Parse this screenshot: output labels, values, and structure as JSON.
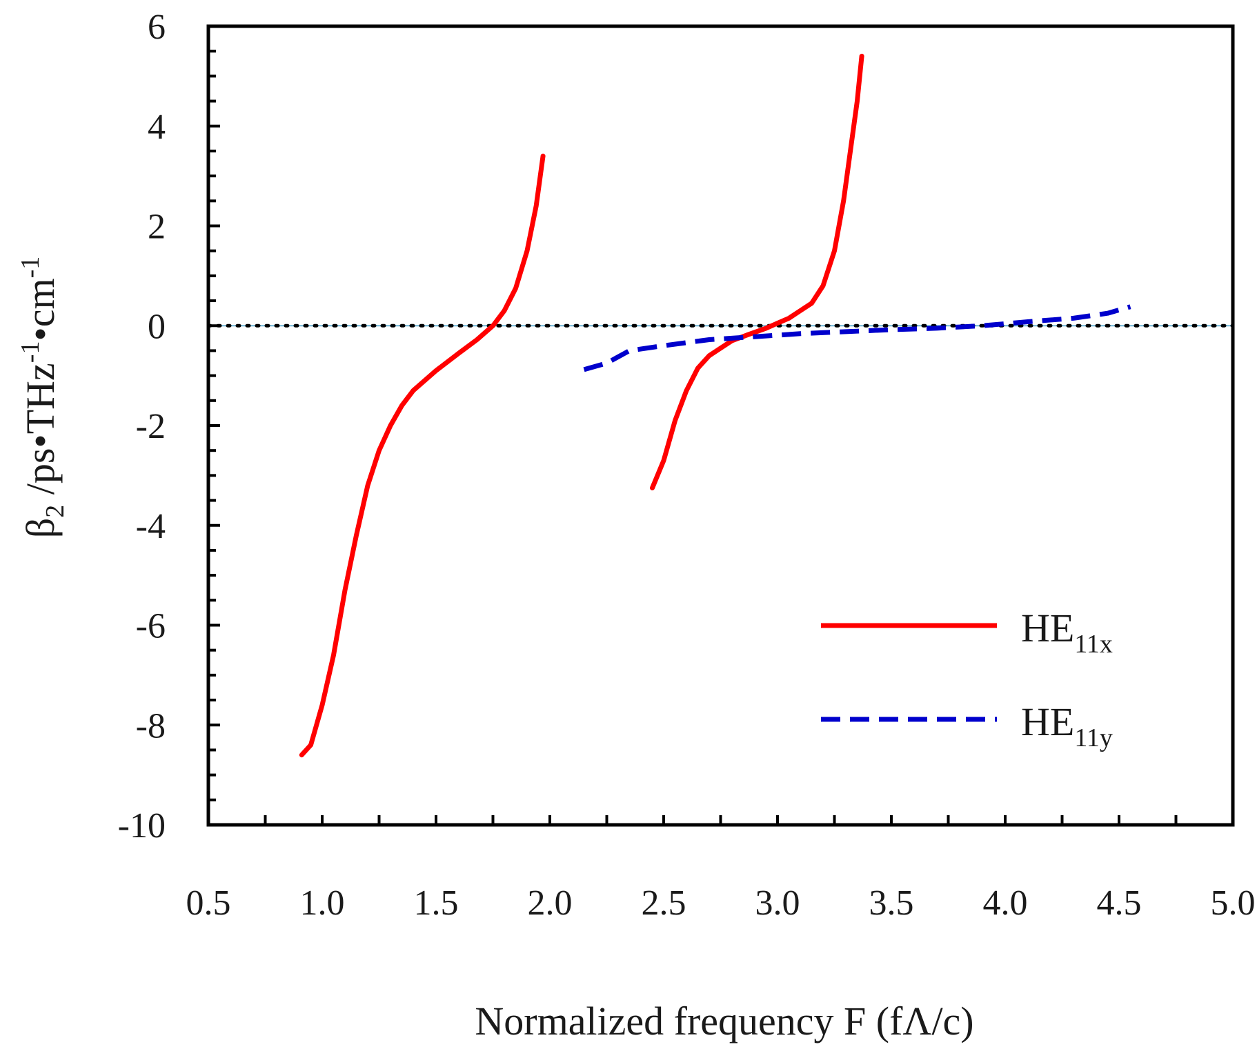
{
  "chart_data": {
    "type": "line",
    "title": "",
    "xlabel": "Normalized frequency F (fΛ/c)",
    "ylabel": {
      "base": "β",
      "sub": "2",
      "rest": " /ps•THz",
      "sup1": "-1",
      "mid": "•cm",
      "sup2": "-1"
    },
    "xlim": [
      0.5,
      5.0
    ],
    "ylim": [
      -10,
      6
    ],
    "x_ticks": [
      0.5,
      1.0,
      1.5,
      2.0,
      2.5,
      3.0,
      3.5,
      4.0,
      4.5,
      5.0
    ],
    "x_tick_labels": [
      "0.5",
      "1.0",
      "1.5",
      "2.0",
      "2.5",
      "3.0",
      "3.5",
      "4.0",
      "4.5",
      "5.0"
    ],
    "y_ticks": [
      -10,
      -8,
      -6,
      -4,
      -2,
      0,
      2,
      4,
      6
    ],
    "y_tick_labels": [
      "-10",
      "-8",
      "-6",
      "-4",
      "-2",
      "0",
      "2",
      "4",
      "6"
    ],
    "grid": false,
    "legend_position": "bottom-right",
    "zero_reference": {
      "y": 0,
      "style": "dotted",
      "color": "#000000"
    },
    "series": [
      {
        "name": "HE11x",
        "legend": {
          "base": "HE",
          "sub": "11x"
        },
        "color": "#ff0000",
        "style": "solid",
        "segments": [
          [
            [
              0.91,
              -8.6
            ],
            [
              0.95,
              -8.4
            ],
            [
              1.0,
              -7.6
            ],
            [
              1.05,
              -6.6
            ],
            [
              1.1,
              -5.3
            ],
            [
              1.15,
              -4.2
            ],
            [
              1.2,
              -3.2
            ],
            [
              1.25,
              -2.5
            ],
            [
              1.3,
              -2.0
            ],
            [
              1.35,
              -1.6
            ],
            [
              1.4,
              -1.3
            ],
            [
              1.5,
              -0.9
            ],
            [
              1.6,
              -0.55
            ],
            [
              1.68,
              -0.28
            ],
            [
              1.75,
              0.0
            ],
            [
              1.8,
              0.3
            ],
            [
              1.85,
              0.75
            ],
            [
              1.9,
              1.5
            ],
            [
              1.94,
              2.4
            ],
            [
              1.97,
              3.4
            ]
          ],
          [
            [
              2.45,
              -3.25
            ],
            [
              2.5,
              -2.7
            ],
            [
              2.55,
              -1.9
            ],
            [
              2.6,
              -1.3
            ],
            [
              2.65,
              -0.85
            ],
            [
              2.7,
              -0.6
            ],
            [
              2.75,
              -0.45
            ],
            [
              2.8,
              -0.3
            ],
            [
              2.87,
              -0.18
            ],
            [
              2.95,
              -0.05
            ],
            [
              3.0,
              0.05
            ],
            [
              3.05,
              0.15
            ],
            [
              3.1,
              0.3
            ],
            [
              3.15,
              0.45
            ],
            [
              3.2,
              0.8
            ],
            [
              3.25,
              1.5
            ],
            [
              3.29,
              2.5
            ],
            [
              3.32,
              3.5
            ],
            [
              3.35,
              4.5
            ],
            [
              3.37,
              5.4
            ]
          ]
        ]
      },
      {
        "name": "HE11y",
        "legend": {
          "base": "HE",
          "sub": "11y"
        },
        "color": "#0000cc",
        "style": "dashed",
        "segments": [
          [
            [
              2.15,
              -0.88
            ],
            [
              2.25,
              -0.75
            ],
            [
              2.35,
              -0.5
            ],
            [
              2.5,
              -0.4
            ],
            [
              2.7,
              -0.28
            ],
            [
              2.9,
              -0.22
            ],
            [
              3.1,
              -0.16
            ],
            [
              3.3,
              -0.12
            ],
            [
              3.5,
              -0.08
            ],
            [
              3.7,
              -0.05
            ],
            [
              3.9,
              0.0
            ],
            [
              4.1,
              0.08
            ],
            [
              4.3,
              0.15
            ],
            [
              4.45,
              0.25
            ],
            [
              4.55,
              0.38
            ]
          ]
        ]
      }
    ]
  }
}
